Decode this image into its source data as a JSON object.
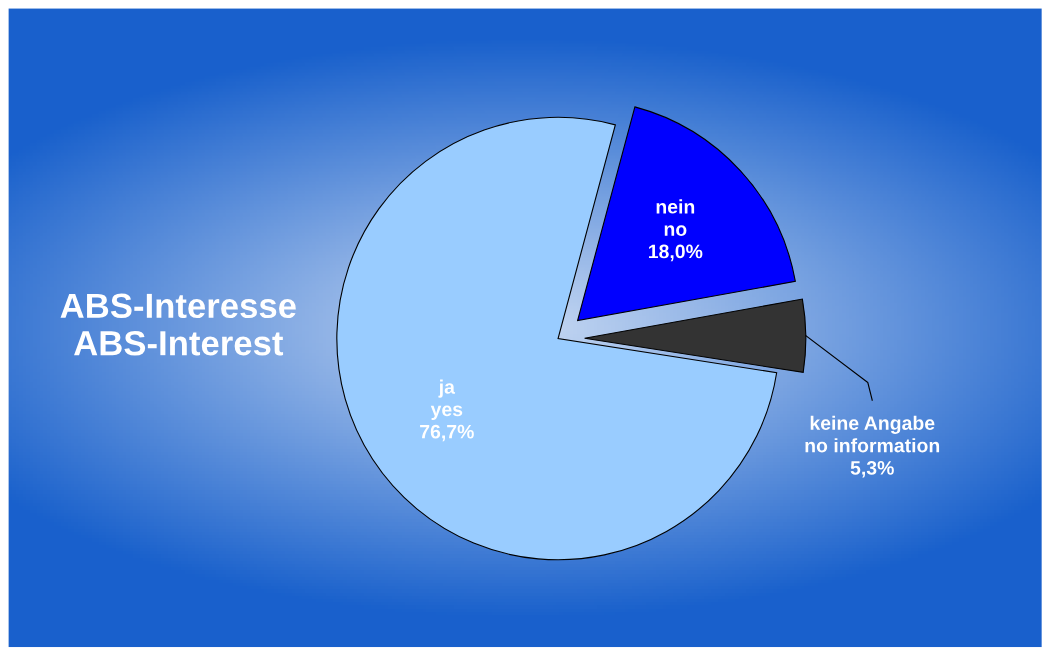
{
  "chart_data": {
    "type": "pie",
    "title": "ABS-Interesse\nABS-Interest",
    "categories": [
      "nein\nno",
      "keine Angabe\nno information",
      "ja\nyes"
    ],
    "values": [
      18.0,
      5.3,
      76.7
    ],
    "value_labels": [
      "18,0%",
      "5,3%",
      "76,7%"
    ],
    "colors": [
      "#0000ff",
      "#333333",
      "#99ccff"
    ]
  }
}
